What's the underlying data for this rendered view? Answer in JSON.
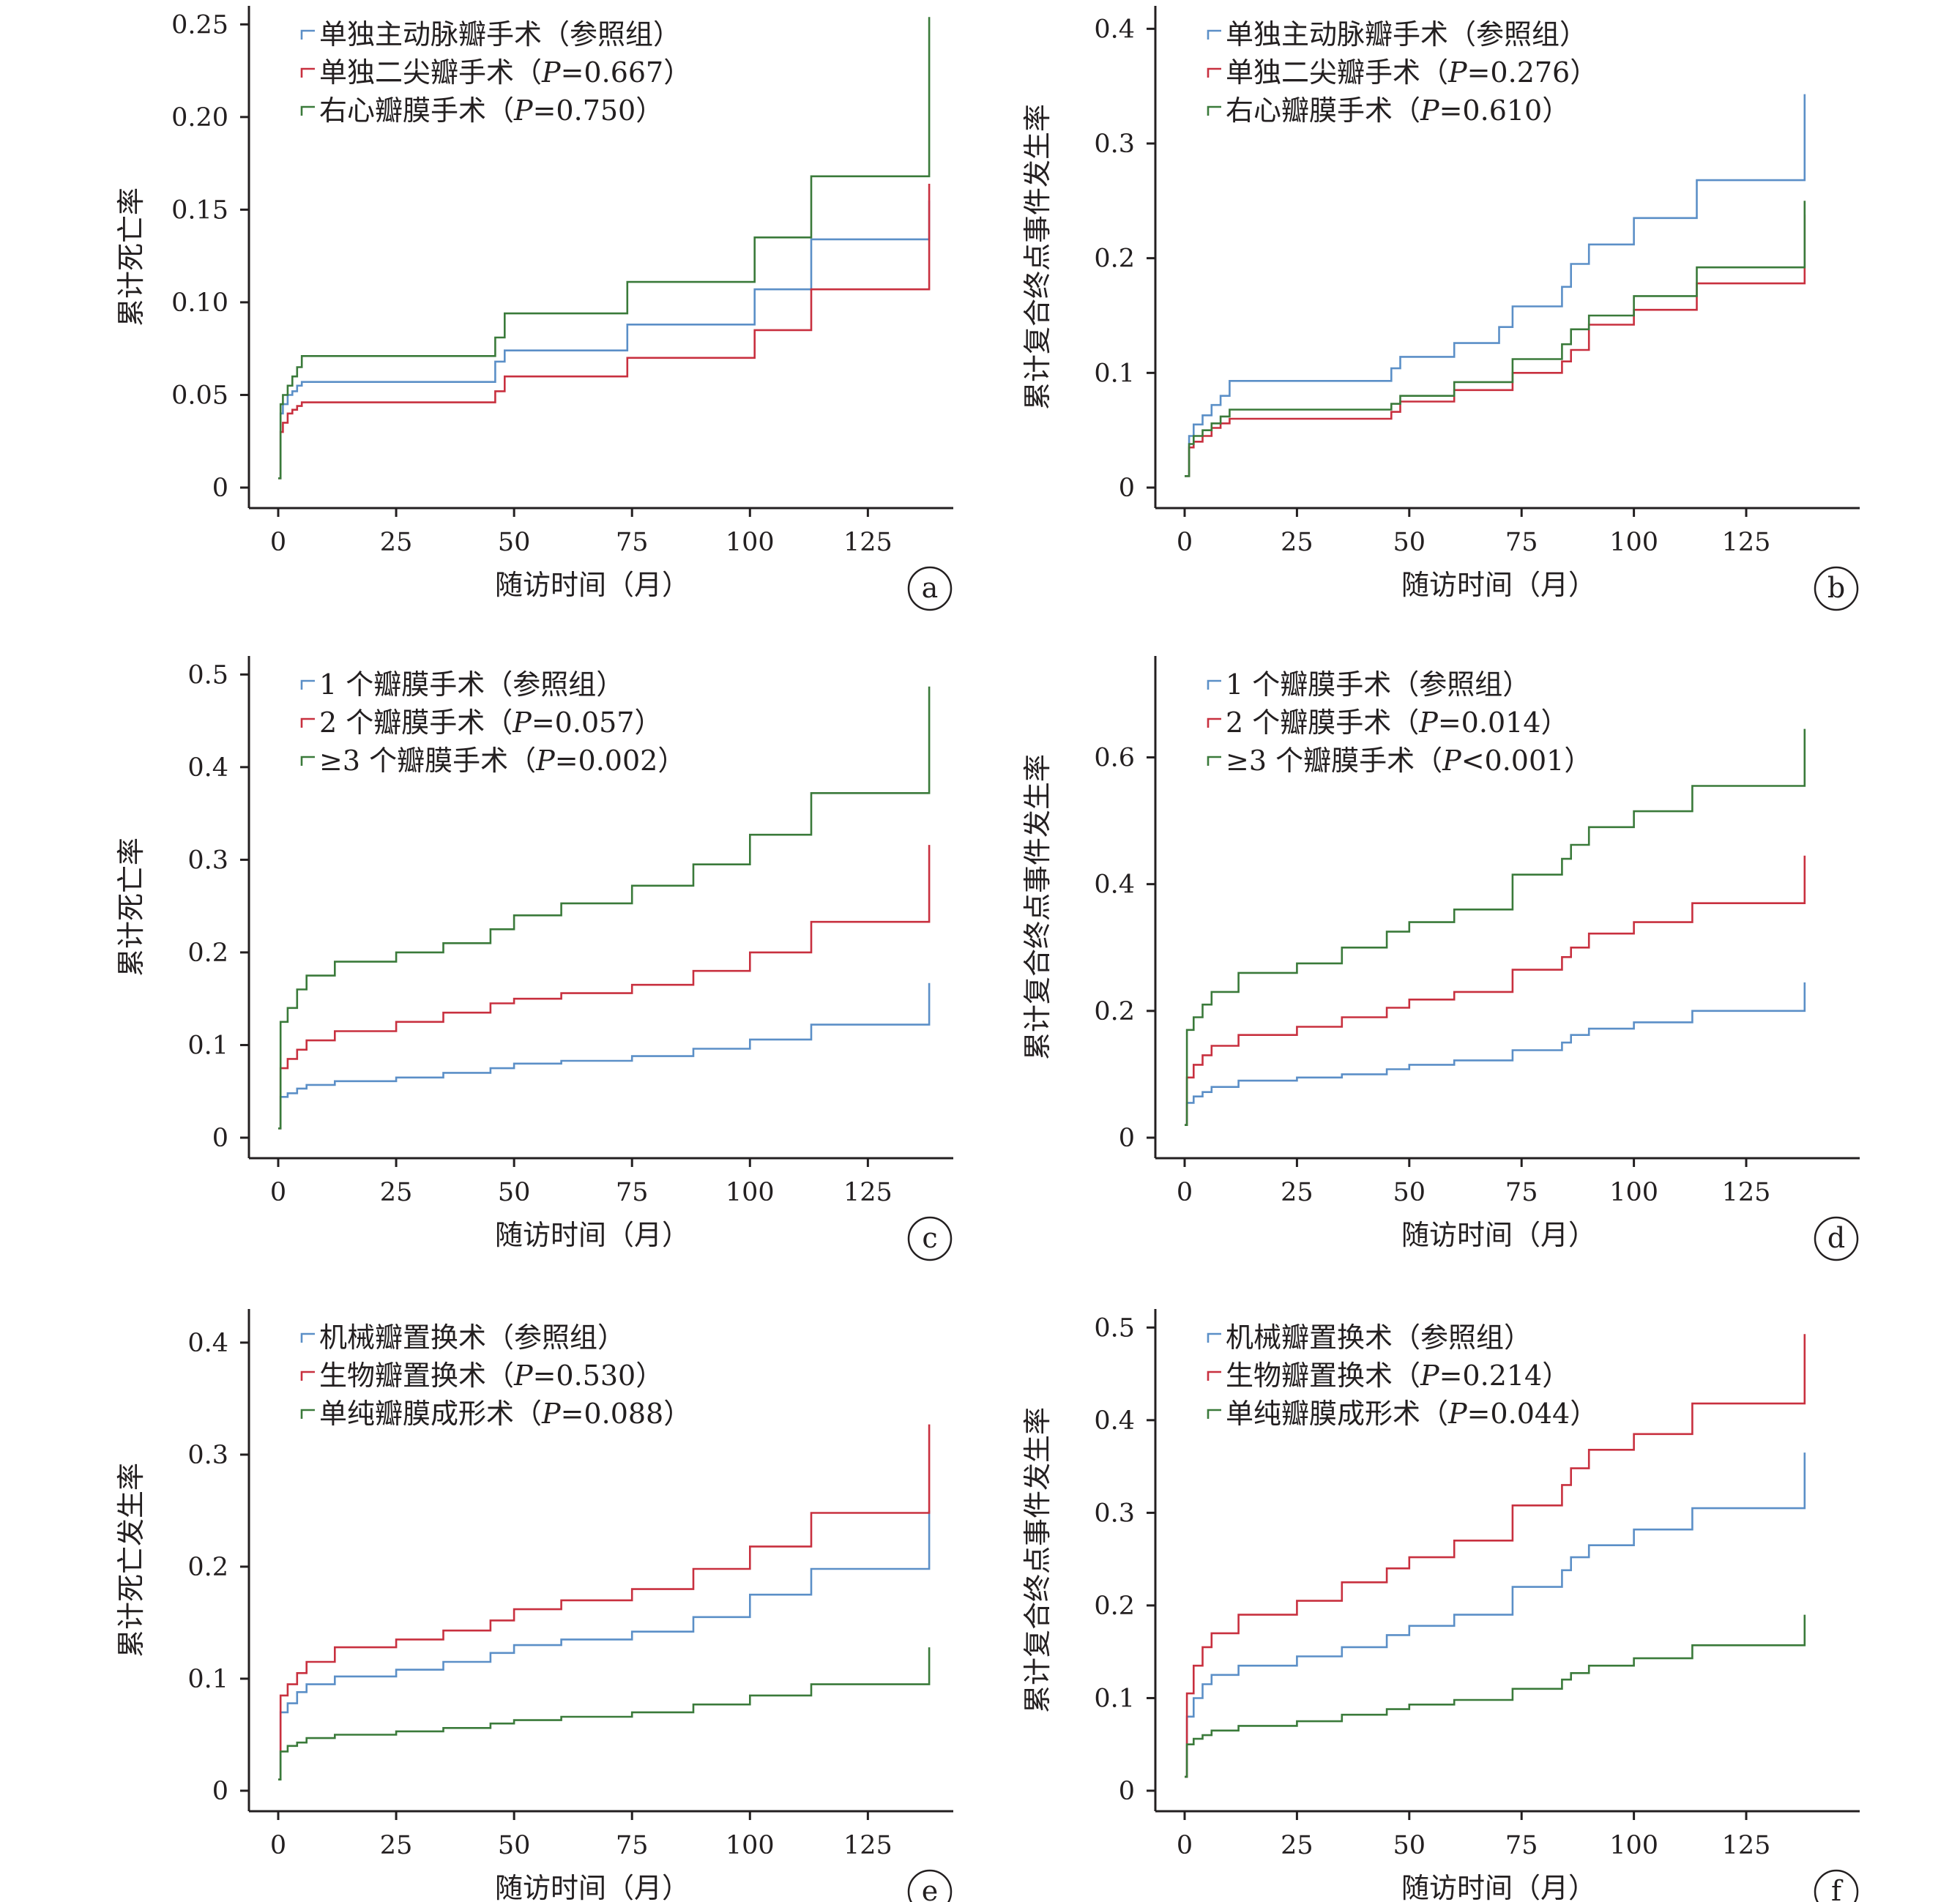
{
  "colors": {
    "blue": "#5b8fc7",
    "red": "#c8303f",
    "green": "#3a7a3a",
    "axis": "#231f20"
  },
  "chart_data": [
    {
      "panel": "a",
      "type": "line",
      "step": true,
      "xlabel": "随访时间（月）",
      "ylabel": "累计死亡率",
      "xlim": [
        0,
        140
      ],
      "ylim": [
        0,
        0.26
      ],
      "xticks": [
        0,
        25,
        50,
        75,
        100,
        125
      ],
      "yticks": [
        0,
        0.05,
        0.1,
        0.15,
        0.2,
        0.25
      ],
      "ytick_labels": [
        "0",
        "0.05",
        "0.10",
        "0.15",
        "0.20",
        "0.25"
      ],
      "series": [
        {
          "name": "单独主动脉瓣手术（参照组）",
          "legend_parts": [
            "单独主动脉瓣手术（参照组）"
          ],
          "color": "blue",
          "x": [
            0,
            0.5,
            1,
            2,
            3,
            4,
            5,
            46,
            48,
            74,
            101,
            113,
            138,
            138
          ],
          "y": [
            0.005,
            0.04,
            0.045,
            0.05,
            0.052,
            0.055,
            0.057,
            0.068,
            0.074,
            0.088,
            0.107,
            0.134,
            0.134,
            0.155
          ]
        },
        {
          "name": "单独二尖瓣手术（P=0.667）",
          "legend_parts": [
            "单独二尖瓣手术（",
            "P",
            "=0.667）"
          ],
          "color": "red",
          "x": [
            0,
            0.5,
            1,
            2,
            3,
            4,
            5,
            46,
            48,
            74,
            101,
            113,
            138,
            138
          ],
          "y": [
            0.005,
            0.03,
            0.035,
            0.04,
            0.042,
            0.044,
            0.046,
            0.052,
            0.06,
            0.07,
            0.085,
            0.107,
            0.107,
            0.164
          ]
        },
        {
          "name": "右心瓣膜手术（P=0.750）",
          "legend_parts": [
            "右心瓣膜手术（",
            "P",
            "=0.750）"
          ],
          "color": "green",
          "x": [
            0,
            0.5,
            1,
            2,
            3,
            4,
            5,
            46,
            48,
            74,
            101,
            113,
            138,
            138
          ],
          "y": [
            0.005,
            0.045,
            0.05,
            0.055,
            0.06,
            0.065,
            0.071,
            0.081,
            0.094,
            0.111,
            0.135,
            0.168,
            0.168,
            0.254
          ]
        }
      ]
    },
    {
      "panel": "b",
      "type": "line",
      "step": true,
      "xlabel": "随访时间（月）",
      "ylabel": "累计复合终点事件发生率",
      "xlim": [
        0,
        147
      ],
      "ylim": [
        0,
        0.42
      ],
      "xticks": [
        0,
        25,
        50,
        75,
        100,
        125
      ],
      "yticks": [
        0,
        0.1,
        0.2,
        0.3,
        0.4
      ],
      "ytick_labels": [
        "0",
        "0.1",
        "0.2",
        "0.3",
        "0.4"
      ],
      "series": [
        {
          "name": "单独主动脉瓣手术（参照组）",
          "legend_parts": [
            "单独主动脉瓣手术（参照组）"
          ],
          "color": "blue",
          "x": [
            0,
            1,
            2,
            4,
            6,
            8,
            10,
            46,
            48,
            60,
            70,
            73,
            84,
            86,
            90,
            100,
            114,
            138,
            138
          ],
          "y": [
            0.01,
            0.045,
            0.055,
            0.063,
            0.072,
            0.08,
            0.093,
            0.104,
            0.114,
            0.126,
            0.14,
            0.158,
            0.175,
            0.195,
            0.212,
            0.235,
            0.268,
            0.268,
            0.343
          ]
        },
        {
          "name": "单独二尖瓣手术（P=0.276）",
          "legend_parts": [
            "单独二尖瓣手术（",
            "P",
            "=0.276）"
          ],
          "color": "red",
          "x": [
            0,
            1,
            2,
            4,
            6,
            8,
            10,
            46,
            48,
            60,
            73,
            84,
            86,
            90,
            100,
            114,
            138,
            138
          ],
          "y": [
            0.01,
            0.035,
            0.04,
            0.045,
            0.052,
            0.056,
            0.06,
            0.066,
            0.075,
            0.085,
            0.1,
            0.11,
            0.12,
            0.142,
            0.155,
            0.178,
            0.178,
            0.238
          ]
        },
        {
          "name": "右心瓣膜手术（P=0.610）",
          "legend_parts": [
            "右心瓣膜手术（",
            "P",
            "=0.610）"
          ],
          "color": "green",
          "x": [
            0,
            1,
            2,
            4,
            6,
            8,
            10,
            46,
            48,
            60,
            73,
            84,
            86,
            90,
            100,
            114,
            138,
            138
          ],
          "y": [
            0.01,
            0.038,
            0.045,
            0.05,
            0.056,
            0.062,
            0.068,
            0.073,
            0.08,
            0.092,
            0.112,
            0.125,
            0.138,
            0.15,
            0.167,
            0.192,
            0.192,
            0.25
          ]
        }
      ]
    },
    {
      "panel": "c",
      "type": "line",
      "step": true,
      "xlabel": "随访时间（月）",
      "ylabel": "累计死亡率",
      "xlim": [
        0,
        140
      ],
      "ylim": [
        0,
        0.52
      ],
      "xticks": [
        0,
        25,
        50,
        75,
        100,
        125
      ],
      "yticks": [
        0,
        0.1,
        0.2,
        0.3,
        0.4,
        0.5
      ],
      "ytick_labels": [
        "0",
        "0.1",
        "0.2",
        "0.3",
        "0.4",
        "0.5"
      ],
      "series": [
        {
          "name": "1 个瓣膜手术（参照组）",
          "legend_parts": [
            "1 个瓣膜手术（参照组）"
          ],
          "color": "blue",
          "x": [
            0,
            0.5,
            2,
            4,
            6,
            12,
            25,
            35,
            45,
            50,
            60,
            75,
            88,
            100,
            113,
            138,
            138
          ],
          "y": [
            0.01,
            0.044,
            0.048,
            0.053,
            0.057,
            0.061,
            0.065,
            0.07,
            0.075,
            0.08,
            0.083,
            0.088,
            0.096,
            0.106,
            0.122,
            0.122,
            0.167
          ]
        },
        {
          "name": "2 个瓣膜手术（P=0.057）",
          "legend_parts": [
            "2 个瓣膜手术（",
            "P",
            "=0.057）"
          ],
          "color": "red",
          "x": [
            0,
            0.5,
            2,
            4,
            6,
            12,
            25,
            35,
            45,
            50,
            60,
            75,
            88,
            100,
            113,
            138,
            138
          ],
          "y": [
            0.01,
            0.075,
            0.085,
            0.095,
            0.105,
            0.115,
            0.125,
            0.135,
            0.145,
            0.15,
            0.156,
            0.165,
            0.18,
            0.2,
            0.233,
            0.233,
            0.316
          ]
        },
        {
          "name": "≥3 个瓣膜手术（P=0.002）",
          "legend_parts": [
            "≥3 个瓣膜手术（",
            "P",
            "=0.002）"
          ],
          "color": "green",
          "x": [
            0,
            0.5,
            2,
            4,
            6,
            12,
            25,
            35,
            45,
            50,
            60,
            75,
            88,
            100,
            113,
            138,
            138
          ],
          "y": [
            0.01,
            0.125,
            0.14,
            0.16,
            0.175,
            0.19,
            0.2,
            0.21,
            0.225,
            0.24,
            0.253,
            0.272,
            0.295,
            0.327,
            0.372,
            0.372,
            0.487
          ]
        }
      ]
    },
    {
      "panel": "d",
      "type": "line",
      "step": true,
      "xlabel": "随访时间（月）",
      "ylabel": "累计复合终点事件发生率",
      "xlim": [
        0,
        147
      ],
      "ylim": [
        0,
        0.76
      ],
      "xticks": [
        0,
        25,
        50,
        75,
        100,
        125
      ],
      "yticks": [
        0,
        0.2,
        0.4,
        0.6
      ],
      "ytick_labels": [
        "0",
        "0.2",
        "0.4",
        "0.6"
      ],
      "series": [
        {
          "name": "1 个瓣膜手术（参照组）",
          "legend_parts": [
            "1 个瓣膜手术（参照组）"
          ],
          "color": "blue",
          "x": [
            0,
            0.5,
            2,
            4,
            6,
            12,
            25,
            35,
            45,
            50,
            60,
            73,
            84,
            86,
            90,
            100,
            113,
            138,
            138
          ],
          "y": [
            0.02,
            0.055,
            0.065,
            0.072,
            0.08,
            0.09,
            0.095,
            0.1,
            0.108,
            0.115,
            0.122,
            0.138,
            0.15,
            0.162,
            0.172,
            0.182,
            0.2,
            0.2,
            0.245
          ]
        },
        {
          "name": "2 个瓣膜手术（P=0.014）",
          "legend_parts": [
            "2 个瓣膜手术（",
            "P",
            "=0.014）"
          ],
          "color": "red",
          "x": [
            0,
            0.5,
            2,
            4,
            6,
            12,
            25,
            35,
            45,
            50,
            60,
            73,
            84,
            86,
            90,
            100,
            113,
            138,
            138
          ],
          "y": [
            0.02,
            0.095,
            0.115,
            0.13,
            0.145,
            0.162,
            0.175,
            0.19,
            0.205,
            0.218,
            0.23,
            0.265,
            0.285,
            0.3,
            0.322,
            0.34,
            0.37,
            0.37,
            0.445
          ]
        },
        {
          "name": "≥3 个瓣膜手术（P<0.001）",
          "legend_parts": [
            "≥3 个瓣膜手术（",
            "P",
            "<0.001）"
          ],
          "color": "green",
          "x": [
            0,
            0.5,
            2,
            4,
            6,
            12,
            25,
            35,
            45,
            50,
            60,
            73,
            84,
            86,
            90,
            100,
            113,
            138,
            138
          ],
          "y": [
            0.02,
            0.17,
            0.19,
            0.21,
            0.23,
            0.26,
            0.275,
            0.3,
            0.325,
            0.34,
            0.36,
            0.415,
            0.44,
            0.462,
            0.49,
            0.515,
            0.555,
            0.555,
            0.645
          ]
        }
      ]
    },
    {
      "panel": "e",
      "type": "line",
      "step": true,
      "xlabel": "随访时间（月）",
      "ylabel": "累计死亡发生率",
      "xlim": [
        0,
        140
      ],
      "ylim": [
        0,
        0.43
      ],
      "xticks": [
        0,
        25,
        50,
        75,
        100,
        125
      ],
      "yticks": [
        0,
        0.1,
        0.2,
        0.3,
        0.4
      ],
      "ytick_labels": [
        "0",
        "0.1",
        "0.2",
        "0.3",
        "0.4"
      ],
      "series": [
        {
          "name": "机械瓣置换术（参照组）",
          "legend_parts": [
            "机械瓣置换术（参照组）"
          ],
          "color": "blue",
          "x": [
            0,
            0.5,
            2,
            4,
            6,
            12,
            25,
            35,
            45,
            50,
            60,
            75,
            88,
            100,
            113,
            138,
            138
          ],
          "y": [
            0.01,
            0.07,
            0.078,
            0.088,
            0.095,
            0.102,
            0.108,
            0.115,
            0.123,
            0.13,
            0.135,
            0.142,
            0.155,
            0.175,
            0.198,
            0.198,
            0.25
          ]
        },
        {
          "name": "生物瓣置换术（P=0.530）",
          "legend_parts": [
            "生物瓣置换术（",
            "P",
            "=0.530）"
          ],
          "color": "red",
          "x": [
            0,
            0.5,
            2,
            4,
            6,
            12,
            25,
            35,
            45,
            50,
            60,
            75,
            88,
            100,
            113,
            138,
            138
          ],
          "y": [
            0.01,
            0.085,
            0.095,
            0.105,
            0.115,
            0.128,
            0.135,
            0.143,
            0.152,
            0.162,
            0.17,
            0.18,
            0.198,
            0.218,
            0.248,
            0.248,
            0.327
          ]
        },
        {
          "name": "单纯瓣膜成形术（P=0.088）",
          "legend_parts": [
            "单纯瓣膜成形术（",
            "P",
            "=0.088）"
          ],
          "color": "green",
          "x": [
            0,
            0.5,
            2,
            4,
            6,
            12,
            25,
            35,
            45,
            50,
            60,
            75,
            88,
            100,
            113,
            138,
            138
          ],
          "y": [
            0.01,
            0.035,
            0.04,
            0.043,
            0.047,
            0.05,
            0.053,
            0.056,
            0.06,
            0.063,
            0.066,
            0.07,
            0.077,
            0.085,
            0.095,
            0.095,
            0.128
          ]
        }
      ]
    },
    {
      "panel": "f",
      "type": "line",
      "step": true,
      "xlabel": "随访时间（月）",
      "ylabel": "累计复合终点事件发生率",
      "xlim": [
        0,
        147
      ],
      "ylim": [
        0,
        0.52
      ],
      "xticks": [
        0,
        25,
        50,
        75,
        100,
        125
      ],
      "yticks": [
        0,
        0.1,
        0.2,
        0.3,
        0.4,
        0.5
      ],
      "ytick_labels": [
        "0",
        "0.1",
        "0.2",
        "0.3",
        "0.4",
        "0.5"
      ],
      "series": [
        {
          "name": "机械瓣置换术（参照组）",
          "legend_parts": [
            "机械瓣置换术（参照组）"
          ],
          "color": "blue",
          "x": [
            0,
            0.5,
            2,
            4,
            6,
            12,
            25,
            35,
            45,
            50,
            60,
            73,
            84,
            86,
            90,
            100,
            113,
            138,
            138
          ],
          "y": [
            0.015,
            0.08,
            0.1,
            0.115,
            0.125,
            0.135,
            0.145,
            0.155,
            0.168,
            0.178,
            0.19,
            0.22,
            0.238,
            0.252,
            0.265,
            0.282,
            0.305,
            0.305,
            0.365
          ]
        },
        {
          "name": "生物瓣置换术（P=0.214）",
          "legend_parts": [
            "生物瓣置换术（",
            "P",
            "=0.214）"
          ],
          "color": "red",
          "x": [
            0,
            0.5,
            2,
            4,
            6,
            12,
            25,
            35,
            45,
            50,
            60,
            73,
            84,
            86,
            90,
            100,
            113,
            138,
            138
          ],
          "y": [
            0.015,
            0.105,
            0.135,
            0.155,
            0.17,
            0.19,
            0.205,
            0.225,
            0.24,
            0.252,
            0.27,
            0.308,
            0.33,
            0.348,
            0.368,
            0.385,
            0.418,
            0.418,
            0.493
          ]
        },
        {
          "name": "单纯瓣膜成形术（P=0.044）",
          "legend_parts": [
            "单纯瓣膜成形术（",
            "P",
            "=0.044）"
          ],
          "color": "green",
          "x": [
            0,
            0.5,
            2,
            4,
            6,
            12,
            25,
            35,
            45,
            50,
            60,
            73,
            84,
            86,
            90,
            100,
            113,
            138,
            138
          ],
          "y": [
            0.015,
            0.05,
            0.056,
            0.06,
            0.065,
            0.07,
            0.075,
            0.082,
            0.088,
            0.093,
            0.098,
            0.11,
            0.12,
            0.127,
            0.135,
            0.143,
            0.157,
            0.157,
            0.19
          ]
        }
      ]
    }
  ]
}
